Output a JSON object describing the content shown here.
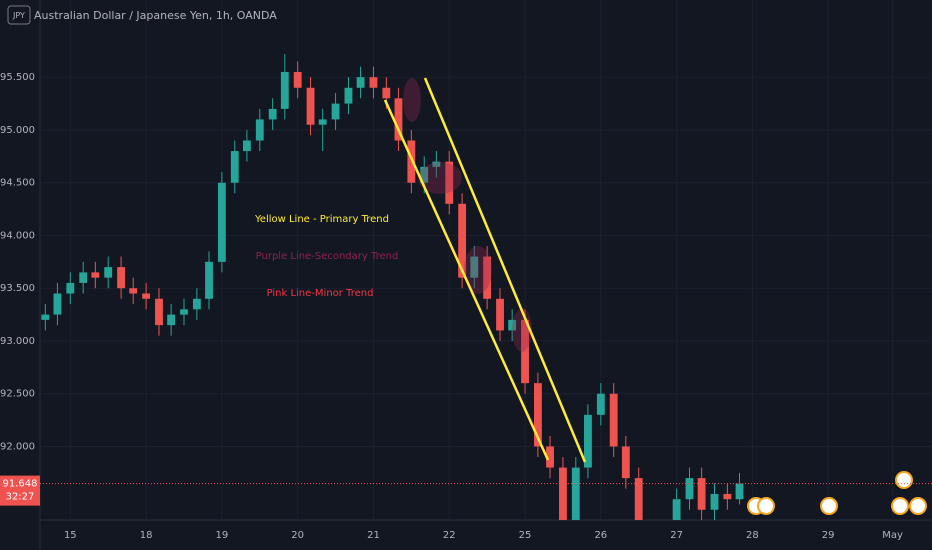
{
  "chart_data": {
    "type": "candlestick",
    "symbol_badge": "JPY",
    "title": "Australian Dollar / Japanese Yen, 1h, OANDA",
    "countdown": "32:27",
    "up_color": "#26a69a",
    "down_color": "#ef5350",
    "grid": true,
    "annotations": [
      {
        "text": "Yellow Line - Primary Trend",
        "color": "#ffeb3b"
      },
      {
        "text": "Purple Line-Secondary Trend",
        "color": "#8e244d"
      },
      {
        "text": "Pink Line-Minor Trend",
        "color": "#f23645"
      }
    ],
    "x": [
      -0.33,
      -0.17,
      0,
      0.17,
      0.33,
      0.5,
      0.67,
      0.83,
      1,
      1.17,
      1.33,
      1.5,
      1.67,
      1.83,
      2,
      2.17,
      2.33,
      2.5,
      2.67,
      2.83,
      3,
      3.17,
      3.33,
      3.5,
      3.67,
      3.83,
      4,
      4.17,
      4.33,
      4.5,
      4.67,
      4.83,
      5,
      5.17,
      5.33,
      5.5,
      5.67,
      5.83,
      6,
      6.17,
      6.33,
      6.5,
      6.67,
      6.83,
      7,
      7.17,
      7.33,
      7.5,
      7.67,
      7.83,
      8,
      8.17,
      8.33,
      8.5,
      8.67,
      8.83
    ],
    "open": [
      93.2,
      93.25,
      93.45,
      93.55,
      93.65,
      93.6,
      93.7,
      93.5,
      93.45,
      93.4,
      93.15,
      93.25,
      93.3,
      93.4,
      93.75,
      94.5,
      94.8,
      94.9,
      95.1,
      95.2,
      95.55,
      95.4,
      95.05,
      95.1,
      95.25,
      95.4,
      95.5,
      95.4,
      95.3,
      94.9,
      94.5,
      94.65,
      94.7,
      94.3,
      93.6,
      93.8,
      93.4,
      93.1,
      93.2,
      92.6,
      92.0,
      91.8,
      91.3,
      91.8,
      92.3,
      92.5,
      92.0,
      91.7,
      91.2,
      91.1,
      91.2,
      91.5,
      91.7,
      91.4,
      91.55,
      91.5
    ],
    "high": [
      93.35,
      93.55,
      93.65,
      93.75,
      93.75,
      93.8,
      93.8,
      93.6,
      93.55,
      93.5,
      93.35,
      93.4,
      93.5,
      93.85,
      94.6,
      94.9,
      95.0,
      95.2,
      95.3,
      95.72,
      95.65,
      95.5,
      95.2,
      95.35,
      95.5,
      95.6,
      95.6,
      95.5,
      95.4,
      95.0,
      94.75,
      94.8,
      94.8,
      94.4,
      93.9,
      93.9,
      93.5,
      93.3,
      93.3,
      92.7,
      92.1,
      91.9,
      91.9,
      92.4,
      92.6,
      92.6,
      92.1,
      91.8,
      91.3,
      91.3,
      91.6,
      91.8,
      91.8,
      91.65,
      91.65,
      91.75
    ],
    "low": [
      93.1,
      93.15,
      93.35,
      93.45,
      93.5,
      93.5,
      93.4,
      93.35,
      93.3,
      93.05,
      93.05,
      93.15,
      93.2,
      93.3,
      93.65,
      94.4,
      94.7,
      94.8,
      95.0,
      95.1,
      95.3,
      94.95,
      94.8,
      95.0,
      95.15,
      95.3,
      95.3,
      95.2,
      94.8,
      94.4,
      94.4,
      94.55,
      94.2,
      93.5,
      93.5,
      93.3,
      93.0,
      93.0,
      92.5,
      91.9,
      91.7,
      91.2,
      91.2,
      91.7,
      92.2,
      91.9,
      91.6,
      91.1,
      91.0,
      91.0,
      91.1,
      91.4,
      91.3,
      91.3,
      91.4,
      91.45
    ],
    "close": [
      93.25,
      93.45,
      93.55,
      93.65,
      93.6,
      93.7,
      93.5,
      93.45,
      93.4,
      93.15,
      93.25,
      93.3,
      93.4,
      93.75,
      94.5,
      94.8,
      94.9,
      95.1,
      95.2,
      95.55,
      95.4,
      95.05,
      95.1,
      95.25,
      95.4,
      95.5,
      95.4,
      95.3,
      94.9,
      94.5,
      94.65,
      94.7,
      94.3,
      93.6,
      93.8,
      93.4,
      93.1,
      93.2,
      92.6,
      92.0,
      91.8,
      91.3,
      91.8,
      92.3,
      92.5,
      92.0,
      91.7,
      91.2,
      91.1,
      91.2,
      91.5,
      91.7,
      91.4,
      91.55,
      91.5,
      91.648
    ],
    "xlim": [
      -0.4,
      11.37
    ],
    "xticks": [
      {
        "value": 0,
        "label": "15"
      },
      {
        "value": 1,
        "label": "18"
      },
      {
        "value": 2,
        "label": "19"
      },
      {
        "value": 3,
        "label": "20"
      },
      {
        "value": 4,
        "label": "21"
      },
      {
        "value": 5,
        "label": "22"
      },
      {
        "value": 6,
        "label": "25"
      },
      {
        "value": 7,
        "label": "26"
      },
      {
        "value": 8,
        "label": "27"
      },
      {
        "value": 9,
        "label": "28"
      },
      {
        "value": 10,
        "label": "29"
      },
      {
        "value": 10.85,
        "label": "May"
      }
    ],
    "ylim": [
      91.303,
      96.232
    ],
    "yticks": [
      {
        "value": 92,
        "label": "92.000"
      },
      {
        "value": 92.5,
        "label": "92.500"
      },
      {
        "value": 93,
        "label": "93.000"
      },
      {
        "value": 93.5,
        "label": "93.500"
      },
      {
        "value": 94,
        "label": "94.000"
      },
      {
        "value": 94.5,
        "label": "94.500"
      },
      {
        "value": 95,
        "label": "95.000"
      },
      {
        "value": 95.5,
        "label": "95.500"
      }
    ]
  }
}
